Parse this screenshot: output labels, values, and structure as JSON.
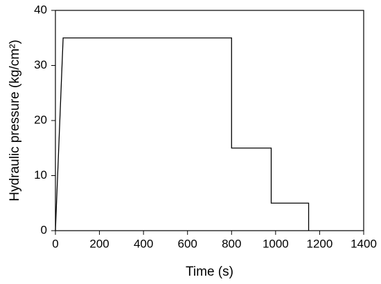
{
  "chart_data": {
    "type": "line",
    "x_label": "Time (s)",
    "y_label": "Hydraulic pressure (kg/cm²)",
    "x": [
      0,
      35,
      800,
      800,
      980,
      980,
      1150,
      1150
    ],
    "series": [
      {
        "color": "#000000",
        "values": [
          0,
          35,
          35,
          15,
          15,
          5,
          5,
          0
        ]
      }
    ],
    "xlim": [
      0,
      1400
    ],
    "xticks": [
      0,
      200,
      400,
      600,
      800,
      1000,
      1200,
      1400
    ],
    "ylim": [
      0,
      40
    ],
    "yticks": [
      0,
      10,
      20,
      30,
      40
    ]
  }
}
